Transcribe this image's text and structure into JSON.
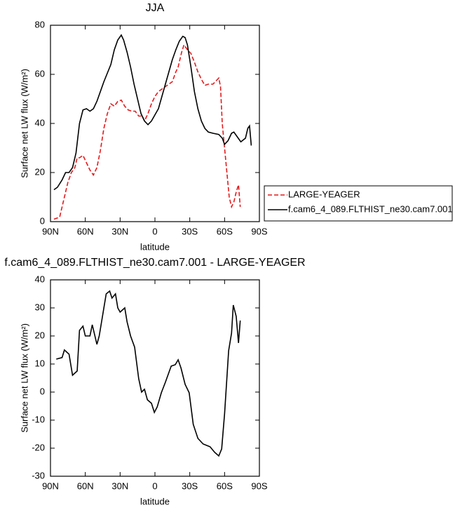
{
  "chart_data": [
    {
      "type": "line",
      "title": "JJA",
      "xlabel": "latitude",
      "ylabel": "Surface net LW flux (W/m²)",
      "xlim": [
        90,
        -90
      ],
      "ylim": [
        0,
        80
      ],
      "xticks": [
        {
          "value": 90,
          "label": "90N"
        },
        {
          "value": 60,
          "label": "60N"
        },
        {
          "value": 30,
          "label": "30N"
        },
        0,
        {
          "value": -30,
          "label": "30S"
        },
        {
          "value": -60,
          "label": "60S"
        },
        {
          "value": -90,
          "label": "90S"
        }
      ],
      "yticks": [
        0,
        20,
        40,
        60,
        80
      ],
      "legend": "right",
      "series": [
        {
          "name": "LARGE-YEAGER",
          "color": "#e41a1c",
          "dashed": true,
          "x": [
            87,
            84,
            82,
            80,
            77,
            75,
            72,
            69,
            67,
            65,
            62,
            59,
            56,
            53,
            50,
            47,
            44,
            41,
            38,
            35,
            32,
            29,
            26,
            23,
            20,
            17,
            14,
            11,
            9,
            6,
            3,
            0,
            -3,
            -6,
            -9,
            -12,
            -15,
            -18,
            -20,
            -23,
            -25,
            -28,
            -31,
            -34,
            -37,
            -40,
            -43,
            -46,
            -50,
            -53,
            -55,
            -56.5,
            -58,
            -60,
            -62,
            -64,
            -66,
            -68,
            -70,
            -72,
            -73.5
          ],
          "values": [
            1,
            1.5,
            2,
            6,
            12,
            16,
            20,
            22,
            26,
            26,
            27,
            24,
            21,
            19,
            22,
            29,
            38,
            44,
            48,
            47,
            49,
            49.5,
            47,
            45.5,
            45,
            45,
            43,
            43,
            41,
            44,
            48,
            51,
            53,
            54,
            55,
            56,
            57,
            61,
            63,
            69,
            72,
            70,
            68.5,
            65,
            61,
            58,
            55.5,
            56,
            56,
            57.5,
            58.5,
            55,
            40,
            30,
            20,
            10,
            6,
            8,
            12,
            15,
            6
          ]
        },
        {
          "name": "f.cam6_4_089.FLTHIST_ne30.cam7.001",
          "color": "#000000",
          "dashed": false,
          "x": [
            87,
            84,
            80,
            77,
            74,
            71,
            68,
            65,
            62,
            59,
            56,
            53,
            50,
            47,
            44,
            41,
            38,
            35,
            32,
            29,
            27,
            24,
            21,
            18,
            15,
            12,
            9,
            6,
            3,
            0,
            -3,
            -6,
            -9,
            -12,
            -15,
            -18,
            -21,
            -24,
            -26,
            -28,
            -31,
            -34,
            -37,
            -40,
            -43,
            -46,
            -50,
            -55,
            -58,
            -60,
            -63,
            -66,
            -68,
            -71,
            -74,
            -78,
            -80,
            -81.5,
            -83
          ],
          "values": [
            13,
            14,
            17,
            20,
            20,
            22,
            28,
            40,
            45.5,
            46,
            45,
            46,
            49,
            53,
            57,
            60.5,
            64,
            70,
            74,
            76,
            74,
            69,
            63,
            56,
            50,
            44,
            41,
            39.5,
            41,
            43.5,
            46,
            51,
            56,
            61,
            66,
            70,
            73.5,
            75.5,
            75,
            72,
            63,
            53,
            46,
            41,
            38,
            36.5,
            36,
            35.5,
            34,
            31.5,
            33,
            36,
            36.5,
            34.5,
            32.5,
            34,
            38,
            39,
            31
          ]
        }
      ]
    },
    {
      "type": "line",
      "title": "f.cam6_4_089.FLTHIST_ne30.cam7.001 - LARGE-YEAGER",
      "xlabel": "latitude",
      "ylabel": "Surface net LW flux (W/m²)",
      "xlim": [
        90,
        -90
      ],
      "ylim": [
        -30,
        40
      ],
      "xticks": [
        {
          "value": 90,
          "label": "90N"
        },
        {
          "value": 60,
          "label": "60N"
        },
        {
          "value": 30,
          "label": "30N"
        },
        0,
        {
          "value": -30,
          "label": "30S"
        },
        {
          "value": -60,
          "label": "60S"
        },
        {
          "value": -90,
          "label": "90S"
        }
      ],
      "yticks": [
        -30,
        -20,
        -10,
        0,
        10,
        20,
        30,
        40
      ],
      "series": [
        {
          "color": "#000000",
          "dashed": false,
          "x": [
            85,
            80,
            78,
            74,
            71,
            67,
            65,
            62,
            60,
            56,
            54,
            50,
            48,
            44,
            42,
            39,
            37,
            34,
            32,
            30,
            26,
            24,
            21,
            17.5,
            14,
            11.5,
            9,
            6.5,
            3,
            0.5,
            -2,
            -5.5,
            -9,
            -14,
            -17.5,
            -20,
            -22.5,
            -26,
            -29.5,
            -33,
            -37,
            -41.5,
            -47.5,
            -51.5,
            -55,
            -57.5,
            -60,
            -63.5,
            -66,
            -67.5,
            -70,
            -72,
            -73.5
          ],
          "values": [
            11.75,
            12.3,
            15,
            13.5,
            6,
            7.5,
            22,
            23.5,
            20,
            20,
            24,
            17,
            20,
            30,
            35,
            36,
            33.5,
            35,
            30,
            28.5,
            30,
            25,
            20,
            16,
            4.8,
            0,
            1,
            -2.75,
            -4,
            -7.25,
            -5.25,
            -0.25,
            3.5,
            9.25,
            9.75,
            11.5,
            8.5,
            2.75,
            -0.25,
            -11.5,
            -16.5,
            -18.5,
            -19.5,
            -21.5,
            -22.75,
            -20.25,
            -7.75,
            14.75,
            21,
            31,
            27,
            17.5,
            25.5
          ]
        }
      ]
    }
  ]
}
